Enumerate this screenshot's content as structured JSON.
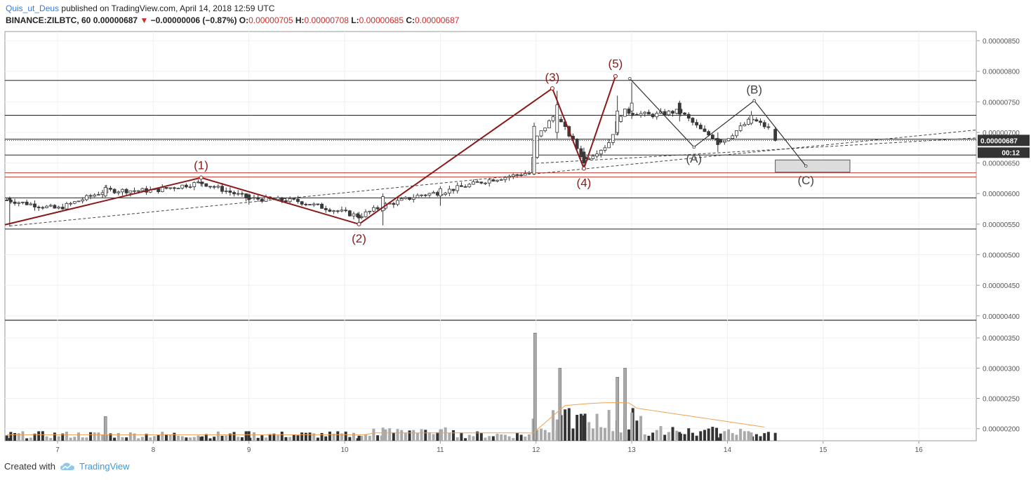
{
  "header": {
    "author": "Quis_ut_Deus",
    "published": "published on TradingView.com, April 14, 2018 12:59 UTC",
    "symbol": "BINANCE:ZILBTC, 60",
    "last": "0.00000687",
    "change": "−0.00000006 (−0.87%)",
    "o_label": "O:",
    "o": "0.00000705",
    "h_label": "H:",
    "h": "0.00000708",
    "l_label": "L:",
    "l": "0.00000685",
    "c_label": "C:",
    "c": "0.00000687"
  },
  "footer": {
    "created_with": "Created with",
    "brand": "TradingView",
    "logo_icon": "tradingview-cloud-icon"
  },
  "colors": {
    "up": "#ffffff",
    "down": "#3a3a3a",
    "wave": "#8b1a1a",
    "hline_red": "#c0392b",
    "volume_up": "#aaaaaa",
    "volume_down": "#333333",
    "volume_ma": "#f0a050",
    "correction": "#333333"
  },
  "chart_data": {
    "type": "candlestick",
    "x_ticks": [
      "7",
      "8",
      "9",
      "10",
      "11",
      "12",
      "13",
      "14",
      "15",
      "16"
    ],
    "x_range": [
      6.45,
      16.6
    ],
    "price_ticks": [
      "0.00000850",
      "0.00000800",
      "0.00000750",
      "0.00000700",
      "0.00000650",
      "0.00000600",
      "0.00000550",
      "0.00000500",
      "0.00000450",
      "0.00000400"
    ],
    "price_range": [
      3.94e-06,
      8.65e-06
    ],
    "volume_ticks": [
      "0.00000350",
      "0.00000300",
      "0.00000250",
      "0.00000200"
    ],
    "volume_range": [
      1.8e-06,
      3.78e-06
    ],
    "last_price_label": "0.00000687",
    "countdown_label": "00:12",
    "horizontal_lines": [
      {
        "price": 7.85e-06,
        "color": "black"
      },
      {
        "price": 7.28e-06,
        "color": "black"
      },
      {
        "price": 6.89e-06,
        "color": "black"
      },
      {
        "price": 6.63e-06,
        "color": "black"
      },
      {
        "price": 6.34e-06,
        "color": "red"
      },
      {
        "price": 6.27e-06,
        "color": "red"
      },
      {
        "price": 5.93e-06,
        "color": "black"
      },
      {
        "price": 5.42e-06,
        "color": "black"
      }
    ],
    "impulse_wave": [
      {
        "x": 6.45,
        "y": 5.49e-06,
        "label": ""
      },
      {
        "x": 8.5,
        "y": 6.26e-06,
        "label": "(1)"
      },
      {
        "x": 10.15,
        "y": 5.5e-06,
        "label": "(2)"
      },
      {
        "x": 12.17,
        "y": 7.72e-06,
        "label": "(3)"
      },
      {
        "x": 12.5,
        "y": 6.41e-06,
        "label": "(4)"
      },
      {
        "x": 12.83,
        "y": 7.92e-06,
        "label": "(5)"
      }
    ],
    "correction_wave": [
      {
        "x": 12.98,
        "y": 7.88e-06,
        "label": ""
      },
      {
        "x": 13.65,
        "y": 6.76e-06,
        "label": "(A)"
      },
      {
        "x": 14.28,
        "y": 7.52e-06,
        "label": "(B)"
      },
      {
        "x": 14.82,
        "y": 6.45e-06,
        "label": "(C)"
      }
    ],
    "trend_lines": [
      {
        "x1": 6.5,
        "y1": 5.47e-06,
        "x2": 16.6,
        "y2": 7.04e-06
      },
      {
        "x1": 11.95,
        "y1": 6.49e-06,
        "x2": 16.6,
        "y2": 6.91e-06
      }
    ],
    "target_box": {
      "x1": 14.5,
      "x2": 15.28,
      "y1": 6.55e-06,
      "y2": 6.35e-06
    },
    "key_candles": [
      {
        "x": 6.5,
        "o": 5.92e-06,
        "h": 5.95e-06,
        "l": 5.46e-06,
        "c": 5.9e-06
      },
      {
        "x": 7.5,
        "o": 5.96e-06,
        "h": 6.14e-06,
        "l": 5.94e-06,
        "c": 6.1e-06
      },
      {
        "x": 8.5,
        "o": 6.18e-06,
        "h": 6.26e-06,
        "l": 6.12e-06,
        "c": 6.17e-06
      },
      {
        "x": 9.0,
        "o": 5.98e-06,
        "h": 6e-06,
        "l": 5.82e-06,
        "c": 5.9e-06
      },
      {
        "x": 10.15,
        "o": 5.65e-06,
        "h": 5.7e-06,
        "l": 5.5e-06,
        "c": 5.6e-06
      },
      {
        "x": 10.4,
        "o": 5.72e-06,
        "h": 6e-06,
        "l": 5.48e-06,
        "c": 5.95e-06
      },
      {
        "x": 11.0,
        "o": 5.96e-06,
        "h": 6.12e-06,
        "l": 5.8e-06,
        "c": 6.08e-06
      },
      {
        "x": 11.98,
        "o": 6.32e-06,
        "h": 7.16e-06,
        "l": 6.3e-06,
        "c": 7.1e-06
      },
      {
        "x": 12.22,
        "o": 7e-06,
        "h": 7.68e-06,
        "l": 6.9e-06,
        "c": 7.45e-06
      },
      {
        "x": 12.5,
        "o": 6.68e-06,
        "h": 6.75e-06,
        "l": 6.41e-06,
        "c": 6.5e-06
      },
      {
        "x": 12.85,
        "o": 7e-06,
        "h": 7.6e-06,
        "l": 6.95e-06,
        "c": 7.35e-06
      },
      {
        "x": 13.0,
        "o": 7.35e-06,
        "h": 7.82e-06,
        "l": 7.22e-06,
        "c": 7.48e-06
      },
      {
        "x": 13.5,
        "o": 7.48e-06,
        "h": 7.52e-06,
        "l": 7.18e-06,
        "c": 7.3e-06
      },
      {
        "x": 13.9,
        "o": 6.9e-06,
        "h": 7e-06,
        "l": 6.68e-06,
        "c": 6.8e-06
      },
      {
        "x": 14.25,
        "o": 7.15e-06,
        "h": 7.35e-06,
        "l": 7.12e-06,
        "c": 7.28e-06
      },
      {
        "x": 14.5,
        "o": 7.05e-06,
        "h": 7.08e-06,
        "l": 6.85e-06,
        "c": 6.87e-06
      }
    ],
    "volume_spikes": [
      {
        "x": 11.99,
        "v": 3.58e-06
      },
      {
        "x": 12.25,
        "v": 3e-06
      },
      {
        "x": 12.93,
        "v": 3e-06
      },
      {
        "x": 12.85,
        "v": 2.85e-06
      },
      {
        "x": 7.5,
        "v": 2.2e-06
      }
    ]
  }
}
